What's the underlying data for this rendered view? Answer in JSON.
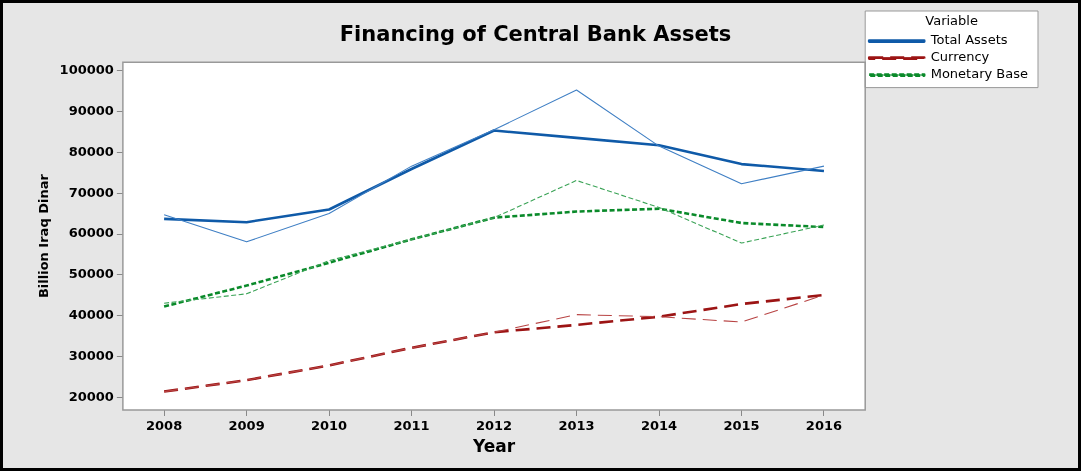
{
  "chart_data": {
    "type": "line",
    "title": "Financing of Central Bank Assets",
    "xlabel": "Year",
    "ylabel": "Billion Iraq Dinar",
    "legend_title": "Variable",
    "categories": [
      "2008",
      "2009",
      "2010",
      "2011",
      "2012",
      "2013",
      "2014",
      "2015",
      "2016"
    ],
    "series": [
      {
        "name": "Total Assets",
        "color": "#0f5aa8",
        "line_style": "solid",
        "values": [
          63700,
          62900,
          66000,
          75900,
          85300,
          83500,
          81700,
          77100,
          75400
        ]
      },
      {
        "name": "Currency",
        "color": "#9c1414",
        "line_style": "dashed",
        "values": [
          21500,
          24300,
          27900,
          32200,
          36000,
          37800,
          39800,
          42900,
          45100
        ]
      },
      {
        "name": "Monetary Base",
        "color": "#0a8a2a",
        "line_style": "dotted",
        "values": [
          42300,
          47400,
          53000,
          58700,
          64000,
          65500,
          66200,
          62700,
          61700
        ]
      },
      {
        "color": "#3f7fc4",
        "line_style": "solid",
        "values": [
          64700,
          58100,
          65000,
          76600,
          85500,
          95200,
          81500,
          72300,
          76600
        ]
      },
      {
        "color": "#b84444",
        "line_style": "dashed",
        "values": [
          21500,
          24300,
          27900,
          32200,
          36000,
          40300,
          39800,
          38500,
          45100
        ]
      },
      {
        "color": "#3aa356",
        "line_style": "dotted",
        "values": [
          43100,
          45400,
          53500,
          58700,
          64000,
          73100,
          66500,
          57800,
          62200
        ]
      }
    ],
    "ylim": [
      17000,
      102000
    ],
    "yticks": [
      20000,
      30000,
      40000,
      50000,
      60000,
      70000,
      80000,
      90000,
      100000
    ],
    "grid": false,
    "legend": "top right",
    "marker": "none"
  }
}
